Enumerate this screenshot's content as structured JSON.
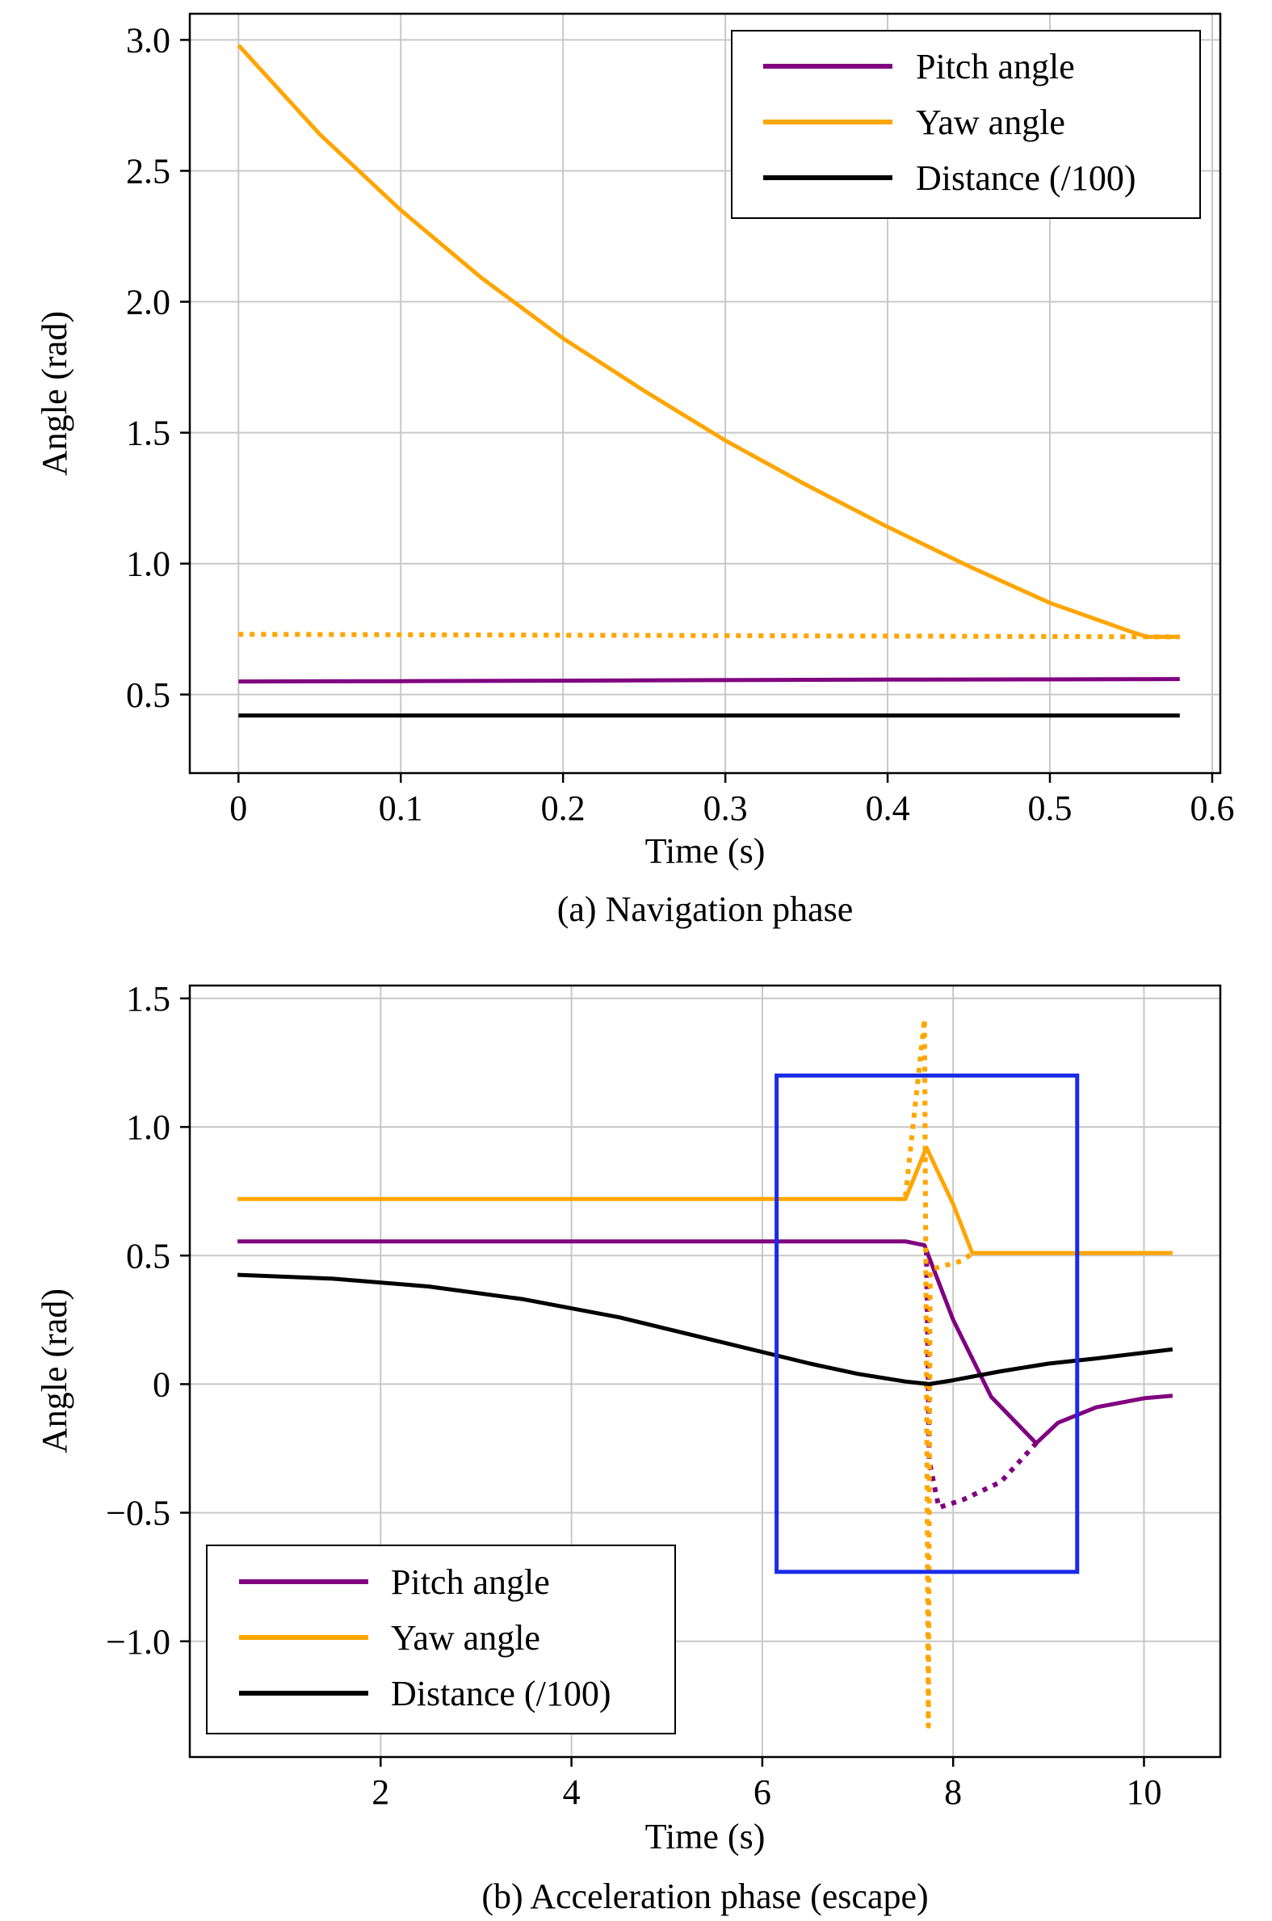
{
  "colors": {
    "pitch": "#800080",
    "yaw": "#FFA500",
    "distance": "#000000",
    "box": "#1A2BE8",
    "grid": "#c8c8c8"
  },
  "chart_data": [
    {
      "type": "line",
      "caption": "(a) Navigation phase",
      "xlabel": "Time (s)",
      "ylabel": "Angle (rad)",
      "xlim": [
        -0.03,
        0.605
      ],
      "ylim": [
        0.2,
        3.1
      ],
      "xticks": [
        0,
        0.1,
        0.2,
        0.3,
        0.4,
        0.5,
        0.6
      ],
      "xtick_labels": [
        "0",
        "0.1",
        "0.2",
        "0.3",
        "0.4",
        "0.5",
        "0.6"
      ],
      "yticks": [
        0.5,
        1.0,
        1.5,
        2.0,
        2.5,
        3.0
      ],
      "ytick_labels": [
        "0.5",
        "1.0",
        "1.5",
        "2.0",
        "2.5",
        "3.0"
      ],
      "grid": true,
      "legend": {
        "position": "top-right",
        "entries": [
          "Pitch angle",
          "Yaw angle",
          "Distance (/100)"
        ]
      },
      "series": [
        {
          "name": "Pitch angle",
          "color_key": "pitch",
          "style": "solid",
          "x": [
            0,
            0.1,
            0.2,
            0.3,
            0.4,
            0.5,
            0.58
          ],
          "y": [
            0.55,
            0.551,
            0.553,
            0.555,
            0.557,
            0.558,
            0.559
          ]
        },
        {
          "name": "Yaw angle",
          "color_key": "yaw",
          "style": "solid",
          "x": [
            0,
            0.05,
            0.1,
            0.15,
            0.2,
            0.25,
            0.3,
            0.35,
            0.4,
            0.45,
            0.5,
            0.55,
            0.56,
            0.58
          ],
          "y": [
            2.98,
            2.64,
            2.35,
            2.09,
            1.86,
            1.66,
            1.47,
            1.3,
            1.14,
            0.99,
            0.85,
            0.74,
            0.72,
            0.72
          ]
        },
        {
          "name": "",
          "color_key": "yaw",
          "style": "dotted",
          "x": [
            0,
            0.58
          ],
          "y": [
            0.73,
            0.72
          ]
        },
        {
          "name": "Distance (/100)",
          "color_key": "distance",
          "style": "solid",
          "x": [
            0,
            0.58
          ],
          "y": [
            0.42,
            0.42
          ]
        }
      ]
    },
    {
      "type": "line",
      "caption": "(b) Acceleration phase (escape)",
      "xlabel": "Time (s)",
      "ylabel": "Angle (rad)",
      "xlim": [
        0,
        10.8
      ],
      "ylim": [
        -1.45,
        1.55
      ],
      "xticks": [
        2,
        4,
        6,
        8,
        10
      ],
      "xtick_labels": [
        "2",
        "4",
        "6",
        "8",
        "10"
      ],
      "yticks": [
        -1.0,
        -0.5,
        0,
        0.5,
        1.0,
        1.5
      ],
      "ytick_labels": [
        "−1.0",
        "−0.5",
        "0",
        "0.5",
        "1.0",
        "1.5"
      ],
      "grid": true,
      "legend": {
        "position": "bottom-left",
        "entries": [
          "Pitch angle",
          "Yaw angle",
          "Distance (/100)"
        ]
      },
      "highlight_box": {
        "x": [
          6.15,
          9.3
        ],
        "y": [
          -0.73,
          1.2
        ]
      },
      "series": [
        {
          "name": "Pitch angle",
          "color_key": "pitch",
          "style": "solid",
          "x": [
            0.5,
            7.5,
            7.7,
            8.0,
            8.4,
            8.87,
            9.1,
            9.5,
            10.0,
            10.3
          ],
          "y": [
            0.555,
            0.555,
            0.54,
            0.25,
            -0.05,
            -0.23,
            -0.15,
            -0.09,
            -0.055,
            -0.045
          ]
        },
        {
          "name": "",
          "color_key": "pitch",
          "style": "dotted",
          "x": [
            7.72,
            7.75,
            7.85,
            8.1,
            8.5,
            8.87
          ],
          "y": [
            0.52,
            -0.3,
            -0.48,
            -0.45,
            -0.38,
            -0.23
          ]
        },
        {
          "name": "Yaw angle",
          "color_key": "yaw",
          "style": "solid",
          "x": [
            0.5,
            7.5,
            7.72,
            8.0,
            8.2,
            10.3
          ],
          "y": [
            0.72,
            0.72,
            0.92,
            0.7,
            0.51,
            0.51
          ]
        },
        {
          "name": "",
          "color_key": "yaw",
          "style": "dotted",
          "x": [
            7.5,
            7.7,
            7.74,
            7.76,
            7.8,
            8.1,
            8.2
          ],
          "y": [
            0.73,
            1.42,
            -1.33,
            0.44,
            0.45,
            0.48,
            0.51
          ]
        },
        {
          "name": "Distance (/100)",
          "color_key": "distance",
          "style": "solid",
          "x": [
            0.5,
            1.5,
            2.5,
            3.5,
            4.5,
            5.5,
            6.5,
            7.0,
            7.5,
            7.75,
            8.0,
            8.5,
            9.0,
            9.5,
            10.3
          ],
          "y": [
            0.425,
            0.41,
            0.38,
            0.33,
            0.26,
            0.17,
            0.08,
            0.04,
            0.01,
            0.0,
            0.015,
            0.05,
            0.08,
            0.1,
            0.135
          ]
        }
      ]
    }
  ]
}
